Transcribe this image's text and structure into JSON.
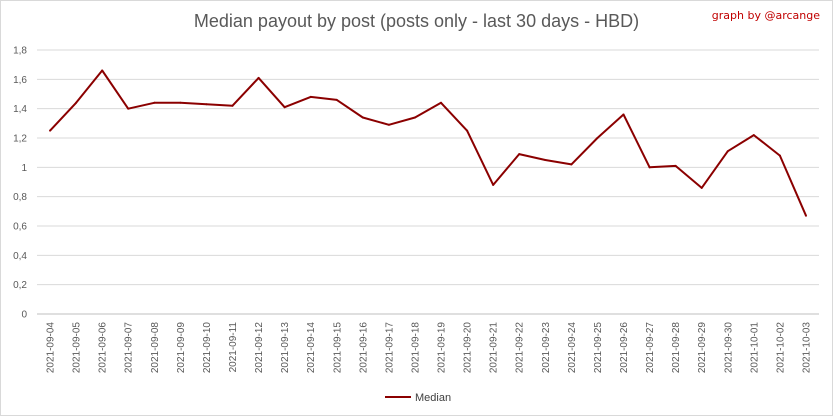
{
  "chart_data": {
    "type": "line",
    "title": "Median payout by post (posts only - last 30 days - HBD)",
    "credit": "graph by @arcange",
    "xlabel": "",
    "ylabel": "",
    "ylim": [
      0,
      1.8
    ],
    "y_ticks": [
      "0",
      "0,2",
      "0,4",
      "0,6",
      "0,8",
      "1",
      "1,2",
      "1,4",
      "1,6",
      "1,8"
    ],
    "grid": "horizontal",
    "legend_position": "bottom",
    "categories": [
      "2021-09-04",
      "2021-09-05",
      "2021-09-06",
      "2021-09-07",
      "2021-09-08",
      "2021-09-09",
      "2021-09-10",
      "2021-09-11",
      "2021-09-12",
      "2021-09-13",
      "2021-09-14",
      "2021-09-15",
      "2021-09-16",
      "2021-09-17",
      "2021-09-18",
      "2021-09-19",
      "2021-09-20",
      "2021-09-21",
      "2021-09-22",
      "2021-09-23",
      "2021-09-24",
      "2021-09-25",
      "2021-09-26",
      "2021-09-27",
      "2021-09-28",
      "2021-09-29",
      "2021-09-30",
      "2021-10-01",
      "2021-10-02",
      "2021-10-03"
    ],
    "series": [
      {
        "name": "Median",
        "color": "#8b0000",
        "values": [
          1.25,
          1.44,
          1.66,
          1.4,
          1.44,
          1.44,
          1.43,
          1.42,
          1.61,
          1.41,
          1.48,
          1.46,
          1.34,
          1.29,
          1.34,
          1.44,
          1.25,
          0.88,
          1.09,
          1.05,
          1.02,
          1.2,
          1.36,
          1.0,
          1.01,
          0.86,
          1.11,
          1.22,
          1.08,
          0.67
        ]
      }
    ]
  }
}
